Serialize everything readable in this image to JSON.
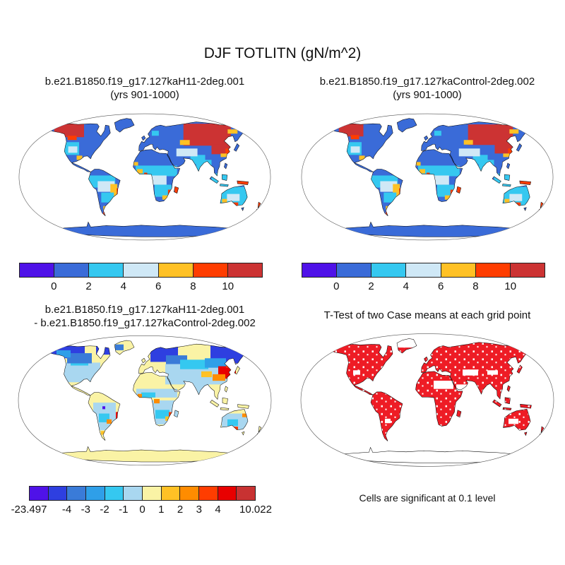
{
  "figure": {
    "title": "DJF TOTLITN (gN/m^2)"
  },
  "panels": {
    "top_left": {
      "line1": "b.e21.B1850.f19_g17.127kaH11-2deg.001",
      "line2": "(yrs 901-1000)"
    },
    "top_right": {
      "line1": "b.e21.B1850.f19_g17.127kaControl-2deg.002",
      "line2": "(yrs 901-1000)"
    },
    "bottom_left": {
      "line1": "b.e21.B1850.f19_g17.127kaH11-2deg.001",
      "line2": "- b.e21.B1850.f19_g17.127kaControl-2deg.002"
    },
    "bottom_right": {
      "title": "T-Test of two Case means at each grid point",
      "caption": "Cells are significant at 0.1 level"
    }
  },
  "palette": {
    "violet": "#4F12E8",
    "dblue": "#2E3FE0",
    "blue": "#3A6BD8",
    "mblue": "#3A7BD8",
    "sky": "#2F9FE8",
    "cyan": "#35C8F0",
    "lblue_top": "#CFE8F6",
    "lblue": "#A9D7F0",
    "pale": "#FAF3A5",
    "amber": "#FFC125",
    "orange": "#FF8C00",
    "verm": "#FF3D00",
    "red": "#E80000",
    "dred": "#CC3333",
    "tred": "#EE1C25"
  },
  "colorbars": {
    "mean": {
      "colors": [
        "#4F12E8",
        "#3A6BD8",
        "#35C8F0",
        "#CFE8F6",
        "#FFC125",
        "#FF3D00",
        "#CC3333"
      ],
      "ticks": [
        {
          "pos": 1,
          "label": "0"
        },
        {
          "pos": 2,
          "label": "2"
        },
        {
          "pos": 3,
          "label": "4"
        },
        {
          "pos": 4,
          "label": "6"
        },
        {
          "pos": 5,
          "label": "8"
        },
        {
          "pos": 6,
          "label": "10"
        }
      ]
    },
    "diff": {
      "colors": [
        "#4F12E8",
        "#2E3FE0",
        "#3A7BD8",
        "#2F9FE8",
        "#35C8F0",
        "#A9D7F0",
        "#FAF3A5",
        "#FFC125",
        "#FF8C00",
        "#FF3D00",
        "#E80000",
        "#C83232"
      ],
      "ticks": [
        {
          "pos": 0,
          "label": "-23.497"
        },
        {
          "pos": 2,
          "label": "-4"
        },
        {
          "pos": 3,
          "label": "-3"
        },
        {
          "pos": 4,
          "label": "-2"
        },
        {
          "pos": 5,
          "label": "-1"
        },
        {
          "pos": 6,
          "label": "0"
        },
        {
          "pos": 7,
          "label": "1"
        },
        {
          "pos": 8,
          "label": "2"
        },
        {
          "pos": 9,
          "label": "3"
        },
        {
          "pos": 10,
          "label": "4"
        },
        {
          "pos": 12,
          "label": "10.022"
        }
      ]
    }
  },
  "chart_data": [
    {
      "type": "heatmap",
      "projection": "robinson",
      "title": "b.e21.B1850.f19_g17.127kaH11-2deg.001 (yrs 901-1000)",
      "variable": "TOTLITN",
      "season": "DJF",
      "units": "gN/m^2",
      "levels": [
        0,
        2,
        4,
        6,
        8,
        10
      ],
      "palette": [
        "#4F12E8",
        "#3A6BD8",
        "#35C8F0",
        "#CFE8F6",
        "#FFC125",
        "#FF3D00",
        "#CC3333"
      ],
      "legend_position": "bottom",
      "pattern_summary": "Land mostly 0-2 (blue); >10 (dark red) over northern Canada and central-east Siberia; 2-6 (cyan/pale blue) over Sahel, central Africa, Amazon, India, Australia; scattered 6->10 (amber/red) along tropical coasts"
    },
    {
      "type": "heatmap",
      "projection": "robinson",
      "title": "b.e21.B1850.f19_g17.127kaControl-2deg.002 (yrs 901-1000)",
      "variable": "TOTLITN",
      "season": "DJF",
      "units": "gN/m^2",
      "levels": [
        0,
        2,
        4,
        6,
        8,
        10
      ],
      "palette": [
        "#4F12E8",
        "#3A6BD8",
        "#35C8F0",
        "#CFE8F6",
        "#FFC125",
        "#FF3D00",
        "#CC3333"
      ],
      "legend_position": "bottom",
      "pattern_summary": "Very similar to H11 case: blue land with dark-red boreal patches and cyan/amber tropics"
    },
    {
      "type": "heatmap",
      "projection": "robinson",
      "title": "b.e21.B1850.f19_g17.127kaH11-2deg.001 - b.e21.B1850.f19_g17.127kaControl-2deg.002",
      "variable": "TOTLITN difference",
      "season": "DJF",
      "units": "gN/m^2",
      "levels": [
        -4,
        -3,
        -2,
        -1,
        0,
        1,
        2,
        3,
        4
      ],
      "data_min": -23.497,
      "data_max": 10.022,
      "palette": [
        "#4F12E8",
        "#2E3FE0",
        "#3A7BD8",
        "#2F9FE8",
        "#35C8F0",
        "#A9D7F0",
        "#FAF3A5",
        "#FFC125",
        "#FF8C00",
        "#FF3D00",
        "#E80000",
        "#C83232"
      ],
      "legend_position": "bottom",
      "pattern_summary": "Mostly pale yellow (0 to 1) and light blue (-1 to 0); strong negative (dark blue) over Alaska/N Canada, Scandinavia and NE Siberia; strong positive (red/orange) over east Siberia and east Brazil coast"
    },
    {
      "type": "heatmap",
      "projection": "robinson",
      "title": "T-Test of two Case means at each grid point",
      "annotation": "Cells are significant at 0.1 level",
      "significant_color": "#EE1C25",
      "pattern_summary": "Nearly all land cells significant (solid red) with scattered non-significant white cells; Sahara/Arabia band and Antarctica not significant"
    }
  ]
}
